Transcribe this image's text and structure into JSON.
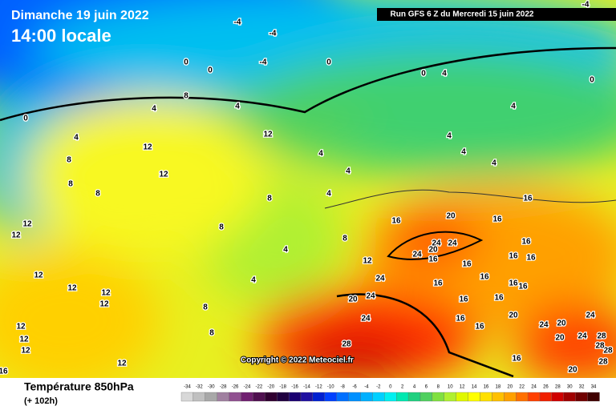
{
  "header": {
    "date": "Dimanche 19 juin 2022",
    "time": "14:00 locale",
    "run": "Run GFS 6 Z du Mercredi 15 juin 2022"
  },
  "copyright": "Copyright © 2022 Meteociel.fr",
  "footer": {
    "title": "Température 850hPa",
    "lead": "(+ 102h)"
  },
  "scale": {
    "values": [
      -34,
      -32,
      -30,
      -28,
      -26,
      -24,
      -22,
      -20,
      -18,
      -16,
      -14,
      -12,
      -10,
      -8,
      -6,
      -4,
      -2,
      0,
      2,
      4,
      6,
      8,
      10,
      12,
      14,
      16,
      18,
      20,
      22,
      24,
      26,
      28,
      30,
      32,
      34
    ],
    "colors": [
      "#d8d8d8",
      "#c0c0c0",
      "#a8a8a8",
      "#a080a0",
      "#905090",
      "#702070",
      "#501050",
      "#300030",
      "#200040",
      "#1a0070",
      "#2010a0",
      "#0020d0",
      "#0040ff",
      "#0070ff",
      "#0090ff",
      "#00b0ff",
      "#00d0ff",
      "#00f0f0",
      "#00e8b0",
      "#20d080",
      "#50d060",
      "#80e040",
      "#b0f030",
      "#e0f800",
      "#ffff00",
      "#ffe000",
      "#ffc000",
      "#ffa000",
      "#ff7000",
      "#ff4000",
      "#f02000",
      "#d00000",
      "#a00000",
      "#700000",
      "#400000"
    ]
  },
  "contour_labels": [
    -4,
    -4,
    0,
    0,
    -4,
    0,
    -4,
    0,
    4,
    0,
    8,
    4,
    4,
    4,
    0,
    4,
    12,
    12,
    4,
    4,
    4,
    4,
    8,
    12,
    4,
    8,
    8,
    4,
    8,
    16,
    20,
    16,
    16,
    8,
    24,
    24,
    8,
    16,
    24,
    20,
    16,
    16,
    16,
    4,
    12,
    16,
    16,
    4,
    24,
    16,
    16,
    16,
    12,
    12,
    12,
    20,
    24,
    12,
    12,
    12,
    8,
    16,
    16,
    24,
    24,
    20,
    16,
    16,
    20,
    24,
    12,
    12,
    8,
    12,
    28,
    20,
    24,
    28,
    28,
    28,
    12,
    16,
    16,
    20,
    28
  ]
}
